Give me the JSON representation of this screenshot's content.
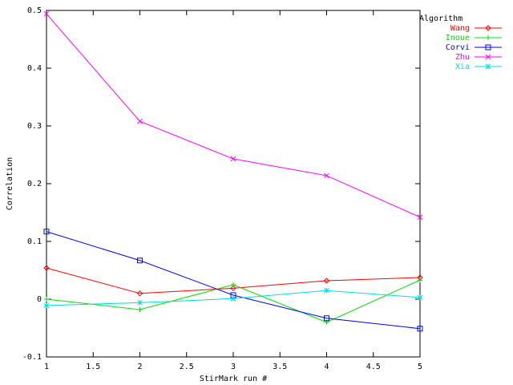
{
  "chart_data": {
    "type": "line",
    "xlabel": "StirMark run #",
    "ylabel": "Correlation",
    "legend_title": "Algorithm",
    "legend": "top-right",
    "grid": false,
    "x": [
      1,
      2,
      3,
      4,
      5
    ],
    "series": [
      {
        "name": "Wang",
        "color": "#ff0000",
        "marker": "diamond",
        "values": [
          0.054,
          0.01,
          0.019,
          0.032,
          0.0375
        ]
      },
      {
        "name": "Inoue",
        "color": "#00dd00",
        "marker": "plus",
        "values": [
          0.0,
          -0.018,
          0.025,
          -0.04,
          0.033
        ]
      },
      {
        "name": "Corvi",
        "color": "#0000ff",
        "marker": "square",
        "values": [
          0.117,
          0.067,
          0.007,
          -0.033,
          -0.051
        ]
      },
      {
        "name": "Zhu",
        "color": "#ff00ff",
        "marker": "cross",
        "values": [
          0.494,
          0.308,
          0.243,
          0.214,
          0.142
        ]
      },
      {
        "name": "Xia",
        "color": "#00dddd",
        "marker": "star",
        "values": [
          -0.011,
          -0.006,
          0.001,
          0.015,
          0.003
        ]
      }
    ],
    "xlim": [
      1,
      5
    ],
    "xticks": [
      1,
      1.5,
      2,
      2.5,
      3,
      3.5,
      4,
      4.5,
      5
    ],
    "ylim": [
      -0.1,
      0.5
    ],
    "yticks": [
      -0.1,
      0,
      0.1,
      0.2,
      0.3,
      0.4,
      0.5
    ]
  }
}
